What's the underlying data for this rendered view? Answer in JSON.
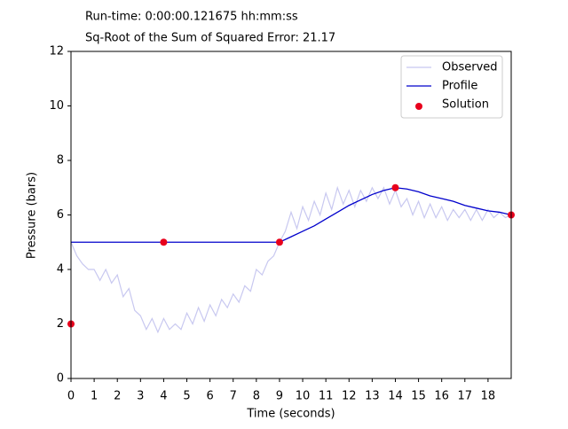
{
  "chart_data": {
    "type": "line",
    "title": "Run-time: 0:00:00.121675 hh:mm:ss",
    "subtitle": "Sq-Root of the Sum of Squared Error: 21.17",
    "x_label": "Time (seconds)",
    "y_label": "Pressure (bars)",
    "xlim": [
      0,
      19
    ],
    "ylim": [
      0,
      12
    ],
    "xticks": [
      0,
      1,
      2,
      3,
      4,
      5,
      6,
      7,
      8,
      9,
      10,
      11,
      12,
      13,
      14,
      15,
      16,
      17,
      18
    ],
    "yticks": [
      0,
      2,
      4,
      6,
      8,
      10,
      12
    ],
    "legend": "upper right",
    "series": [
      {
        "name": "Observed",
        "color": "#c8c8f0",
        "style": "line",
        "x": [
          0,
          0.25,
          0.5,
          0.75,
          1,
          1.25,
          1.5,
          1.75,
          2,
          2.25,
          2.5,
          2.75,
          3,
          3.25,
          3.5,
          3.75,
          4,
          4.25,
          4.5,
          4.75,
          5,
          5.25,
          5.5,
          5.75,
          6,
          6.25,
          6.5,
          6.75,
          7,
          7.25,
          7.5,
          7.75,
          8,
          8.25,
          8.5,
          8.75,
          9,
          9.25,
          9.5,
          9.75,
          10,
          10.25,
          10.5,
          10.75,
          11,
          11.25,
          11.5,
          11.75,
          12,
          12.25,
          12.5,
          12.75,
          13,
          13.25,
          13.5,
          13.75,
          14,
          14.25,
          14.5,
          14.75,
          15,
          15.25,
          15.5,
          15.75,
          16,
          16.25,
          16.5,
          16.75,
          17,
          17.25,
          17.5,
          17.75,
          18,
          18.25,
          18.5,
          18.75,
          19
        ],
        "values": [
          5.0,
          4.5,
          4.2,
          4.0,
          4.0,
          3.6,
          4.0,
          3.5,
          3.8,
          3.0,
          3.3,
          2.5,
          2.3,
          1.8,
          2.2,
          1.7,
          2.2,
          1.8,
          2.0,
          1.8,
          2.4,
          2.0,
          2.6,
          2.1,
          2.7,
          2.3,
          2.9,
          2.6,
          3.1,
          2.8,
          3.4,
          3.2,
          4.0,
          3.8,
          4.3,
          4.5,
          5.0,
          5.4,
          6.1,
          5.5,
          6.3,
          5.8,
          6.5,
          6.0,
          6.8,
          6.2,
          7.0,
          6.4,
          6.9,
          6.3,
          6.9,
          6.5,
          7.0,
          6.6,
          7.0,
          6.4,
          6.9,
          6.3,
          6.6,
          6.0,
          6.5,
          5.9,
          6.4,
          5.9,
          6.3,
          5.8,
          6.2,
          5.9,
          6.2,
          5.8,
          6.2,
          5.8,
          6.2,
          5.9,
          6.1,
          5.9,
          6.0
        ]
      },
      {
        "name": "Profile",
        "color": "#0000cc",
        "style": "line",
        "x": [
          0,
          9,
          9.5,
          10,
          10.5,
          11,
          11.5,
          12,
          12.5,
          13,
          13.5,
          14,
          14.5,
          15,
          15.5,
          16,
          16.5,
          17,
          17.5,
          18,
          18.5,
          19
        ],
        "values": [
          5,
          5,
          5.2,
          5.4,
          5.6,
          5.85,
          6.1,
          6.35,
          6.55,
          6.75,
          6.9,
          7.0,
          6.95,
          6.85,
          6.7,
          6.6,
          6.5,
          6.35,
          6.25,
          6.15,
          6.1,
          6.0
        ]
      },
      {
        "name": "Solution",
        "color": "#e8001c",
        "style": "points",
        "x": [
          0,
          4,
          9,
          14,
          19
        ],
        "values": [
          2,
          5,
          5,
          7,
          6
        ]
      }
    ]
  }
}
